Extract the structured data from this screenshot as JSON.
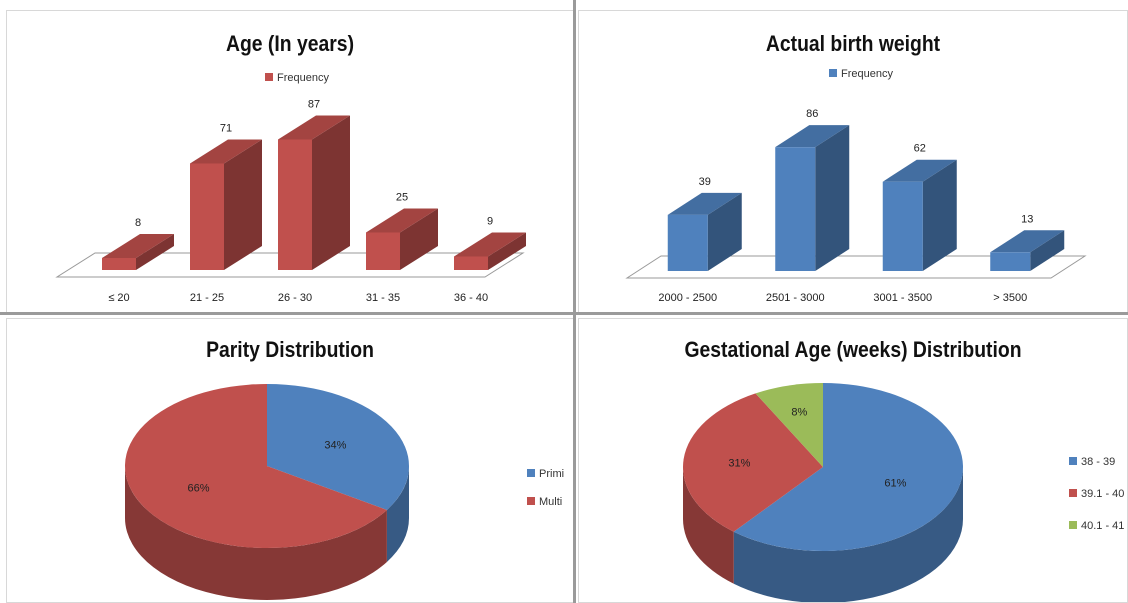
{
  "colors": {
    "red": "#C0504D",
    "blue": "#4F81BD",
    "green": "#9BBB59"
  },
  "chart_data": [
    {
      "type": "bar",
      "title": "Age (In years)",
      "categories": [
        "≤ 20",
        "21 - 25",
        "26 - 30",
        "31 - 35",
        "36 - 40"
      ],
      "series": [
        {
          "name": "Frequency",
          "values": [
            8,
            71,
            87,
            25,
            9
          ]
        }
      ],
      "legend": "top",
      "ylim": [
        0,
        100
      ],
      "style": "3d-column",
      "color": "#C0504D"
    },
    {
      "type": "bar",
      "title": "Actual birth weight",
      "categories": [
        "2000 - 2500",
        "2501 - 3000",
        "3001 - 3500",
        "> 3500"
      ],
      "series": [
        {
          "name": "Frequency",
          "values": [
            39,
            86,
            62,
            13
          ]
        }
      ],
      "legend": "top",
      "ylim": [
        0,
        100
      ],
      "style": "3d-column",
      "color": "#4F81BD"
    },
    {
      "type": "pie",
      "title": "Parity Distribution",
      "labels": [
        "Primi",
        "Multi"
      ],
      "values": [
        34,
        66
      ],
      "value_labels": [
        "34%",
        "66%"
      ],
      "colors": [
        "#4F81BD",
        "#C0504D"
      ],
      "legend": "right",
      "style": "3d-pie"
    },
    {
      "type": "pie",
      "title": "Gestational Age (weeks) Distribution",
      "labels": [
        "38 - 39",
        "39.1 - 40",
        "40.1 - 41"
      ],
      "values": [
        61,
        31,
        8
      ],
      "value_labels": [
        "61%",
        "31%",
        "8%"
      ],
      "colors": [
        "#4F81BD",
        "#C0504D",
        "#9BBB59"
      ],
      "legend": "right",
      "style": "3d-pie"
    }
  ]
}
